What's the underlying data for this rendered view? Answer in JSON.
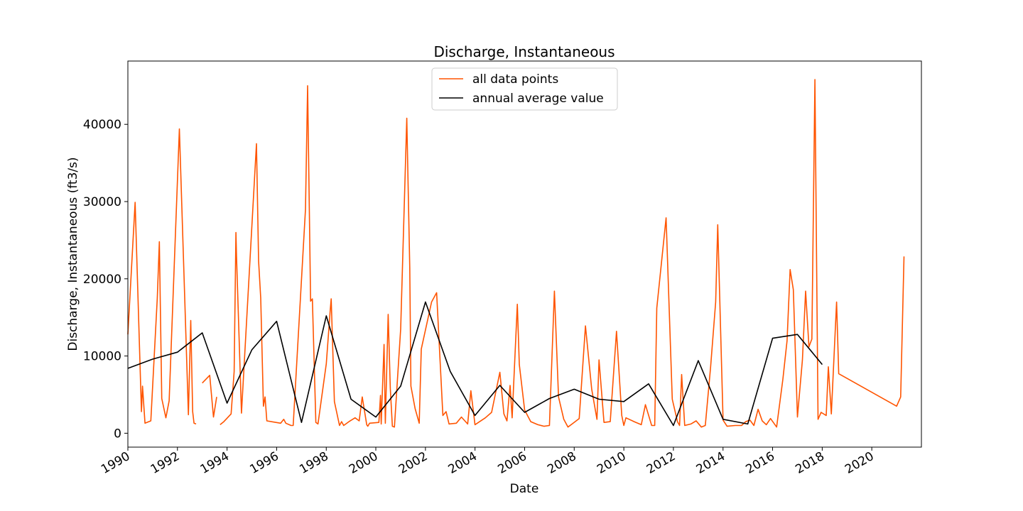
{
  "chart_data": {
    "type": "line",
    "title": "Discharge, Instantaneous",
    "xlabel": "Date",
    "ylabel": "Discharge, Instantaneous (ft3/s)",
    "xlim": [
      "1990-01-01",
      "2022-01-01"
    ],
    "ylim": [
      -1800,
      48200
    ],
    "x_tick_labels": [
      "1990",
      "1992",
      "1994",
      "1996",
      "1998",
      "2000",
      "2002",
      "2004",
      "2006",
      "2008",
      "2010",
      "2012",
      "2014",
      "2016",
      "2018",
      "2020"
    ],
    "y_tick_labels": [
      "0",
      "10000",
      "20000",
      "30000",
      "40000"
    ],
    "legend": {
      "placement": "upper-center"
    },
    "colors": {
      "all_data_points": "#ff5400",
      "annual_average_value": "#000000"
    },
    "series": [
      {
        "name": "all data points",
        "segments": [
          [
            [
              "1990-01-01",
              12800
            ],
            [
              "1990-04-18",
              29900
            ],
            [
              "1990-07-20",
              2800
            ],
            [
              "1990-08-05",
              6100
            ],
            [
              "1990-09-10",
              1300
            ],
            [
              "1990-12-05",
              1600
            ],
            [
              "1991-03-10",
              17500
            ],
            [
              "1991-04-10",
              24800
            ],
            [
              "1991-05-15",
              4500
            ],
            [
              "1991-07-15",
              2000
            ],
            [
              "1991-09-01",
              4200
            ],
            [
              "1992-01-30",
              39400
            ],
            [
              "1992-06-10",
              2400
            ],
            [
              "1992-07-15",
              14600
            ],
            [
              "1992-08-12",
              2800
            ],
            [
              "1992-09-01",
              1300
            ],
            [
              "1992-10-01",
              1200
            ]
          ],
          [
            [
              "1993-01-01",
              6500
            ],
            [
              "1993-04-20",
              7500
            ],
            [
              "1993-06-15",
              2100
            ],
            [
              "1993-08-01",
              4700
            ]
          ],
          [
            [
              "1993-09-20",
              1100
            ],
            [
              "1993-11-15",
              1500
            ],
            [
              "1994-03-01",
              2500
            ],
            [
              "1994-04-15",
              8000
            ],
            [
              "1994-05-12",
              26000
            ],
            [
              "1994-05-20",
              23000
            ],
            [
              "1994-08-01",
              2600
            ],
            [
              "1995-03-10",
              37500
            ],
            [
              "1995-04-10",
              22300
            ],
            [
              "1995-05-12",
              17500
            ],
            [
              "1995-06-20",
              3500
            ],
            [
              "1995-07-15",
              4700
            ],
            [
              "1995-08-10",
              1600
            ],
            [
              "1996-03-01",
              1300
            ],
            [
              "1996-04-15",
              1800
            ],
            [
              "1996-05-15",
              1300
            ],
            [
              "1996-08-01",
              1000
            ],
            [
              "1996-09-01",
              1000
            ],
            [
              "1997-03-01",
              29000
            ],
            [
              "1997-04-01",
              45000
            ],
            [
              "1997-05-15",
              17100
            ],
            [
              "1997-06-10",
              17400
            ],
            [
              "1997-08-01",
              1400
            ],
            [
              "1997-09-01",
              1200
            ],
            [
              "1998-01-01",
              9000
            ],
            [
              "1998-03-01",
              16000
            ],
            [
              "1998-03-15",
              17400
            ],
            [
              "1998-05-01",
              4100
            ],
            [
              "1998-07-15",
              1000
            ],
            [
              "1998-08-15",
              1500
            ],
            [
              "1998-09-15",
              1000
            ],
            [
              "1998-12-01",
              1500
            ],
            [
              "1999-03-01",
              2000
            ],
            [
              "1999-05-01",
              1600
            ],
            [
              "1999-06-15",
              4700
            ],
            [
              "1999-08-20",
              1100
            ],
            [
              "1999-09-05",
              900
            ],
            [
              "1999-10-01",
              1300
            ],
            [
              "2000-02-15",
              1400
            ],
            [
              "2000-03-10",
              4900
            ],
            [
              "2000-03-20",
              1200
            ],
            [
              "2000-05-01",
              11500
            ],
            [
              "2000-05-20",
              1300
            ],
            [
              "2000-07-01",
              15400
            ],
            [
              "2000-08-01",
              5800
            ],
            [
              "2000-09-01",
              900
            ],
            [
              "2000-10-01",
              800
            ],
            [
              "2001-01-01",
              13500
            ],
            [
              "2001-04-01",
              40800
            ],
            [
              "2001-05-15",
              21400
            ],
            [
              "2001-06-01",
              6100
            ],
            [
              "2001-08-01",
              3200
            ],
            [
              "2001-10-01",
              1300
            ],
            [
              "2001-11-01",
              10900
            ],
            [
              "2002-04-01",
              17000
            ],
            [
              "2002-06-15",
              18200
            ],
            [
              "2002-09-15",
              2300
            ],
            [
              "2002-11-01",
              2800
            ],
            [
              "2002-12-15",
              1200
            ],
            [
              "2003-04-01",
              1300
            ],
            [
              "2003-06-15",
              2100
            ],
            [
              "2003-09-15",
              1200
            ],
            [
              "2003-11-01",
              5500
            ],
            [
              "2004-01-01",
              1100
            ],
            [
              "2004-06-01",
              2000
            ],
            [
              "2004-09-01",
              2700
            ],
            [
              "2005-01-01",
              7900
            ],
            [
              "2005-03-01",
              2500
            ],
            [
              "2005-04-15",
              1600
            ],
            [
              "2005-06-01",
              6200
            ],
            [
              "2005-07-01",
              2000
            ],
            [
              "2005-09-15",
              16700
            ],
            [
              "2005-10-15",
              8900
            ],
            [
              "2006-01-01",
              3000
            ],
            [
              "2006-04-01",
              1500
            ],
            [
              "2006-07-15",
              1100
            ],
            [
              "2006-10-15",
              900
            ],
            [
              "2007-01-01",
              1000
            ],
            [
              "2007-03-15",
              18400
            ],
            [
              "2007-05-15",
              4700
            ],
            [
              "2007-08-01",
              1800
            ],
            [
              "2007-10-01",
              800
            ],
            [
              "2007-12-01",
              1200
            ],
            [
              "2008-03-15",
              1900
            ],
            [
              "2008-06-15",
              13900
            ],
            [
              "2008-09-15",
              5700
            ],
            [
              "2008-12-01",
              1800
            ],
            [
              "2009-01-01",
              9500
            ],
            [
              "2009-03-15",
              1400
            ],
            [
              "2009-06-15",
              1500
            ],
            [
              "2009-09-15",
              13200
            ],
            [
              "2009-12-01",
              2300
            ],
            [
              "2010-01-01",
              1000
            ],
            [
              "2010-02-01",
              2000
            ],
            [
              "2010-06-01",
              1500
            ],
            [
              "2010-09-15",
              1100
            ],
            [
              "2010-11-15",
              3700
            ],
            [
              "2011-02-15",
              1000
            ],
            [
              "2011-04-01",
              1000
            ],
            [
              "2011-05-01",
              16200
            ],
            [
              "2011-09-15",
              27900
            ],
            [
              "2011-12-15",
              4400
            ],
            [
              "2012-03-01",
              1500
            ],
            [
              "2012-04-01",
              1000
            ],
            [
              "2012-05-01",
              7600
            ],
            [
              "2012-06-15",
              1000
            ],
            [
              "2012-09-15",
              1200
            ],
            [
              "2012-12-01",
              1600
            ],
            [
              "2013-02-15",
              800
            ],
            [
              "2013-04-15",
              1000
            ],
            [
              "2013-07-01",
              8500
            ],
            [
              "2013-09-15",
              17000
            ],
            [
              "2013-10-15",
              27000
            ],
            [
              "2014-01-01",
              1700
            ],
            [
              "2014-03-01",
              900
            ],
            [
              "2014-07-01",
              1000
            ],
            [
              "2014-10-01",
              1000
            ],
            [
              "2014-12-01",
              1500
            ],
            [
              "2015-02-01",
              1700
            ],
            [
              "2015-04-01",
              1000
            ],
            [
              "2015-06-01",
              3100
            ],
            [
              "2015-08-01",
              1600
            ],
            [
              "2015-10-01",
              1100
            ],
            [
              "2015-12-01",
              1900
            ],
            [
              "2016-03-01",
              800
            ],
            [
              "2016-06-01",
              7000
            ],
            [
              "2016-08-01",
              12000
            ],
            [
              "2016-09-15",
              21200
            ],
            [
              "2016-11-01",
              18600
            ],
            [
              "2017-01-01",
              2100
            ],
            [
              "2017-03-15",
              9500
            ],
            [
              "2017-05-01",
              18400
            ],
            [
              "2017-06-20",
              11200
            ],
            [
              "2017-08-01",
              12200
            ],
            [
              "2017-09-15",
              45800
            ],
            [
              "2017-11-01",
              1800
            ],
            [
              "2017-12-15",
              2700
            ],
            [
              "2018-03-01",
              2300
            ],
            [
              "2018-04-01",
              8600
            ],
            [
              "2018-05-15",
              2500
            ],
            [
              "2018-08-01",
              17000
            ],
            [
              "2018-09-01",
              7700
            ],
            [
              "2021-01-01",
              3500
            ],
            [
              "2021-03-01",
              4700
            ],
            [
              "2021-04-20",
              22900
            ]
          ]
        ]
      },
      {
        "name": "annual average value",
        "points": [
          [
            "1990-01-01",
            8400
          ],
          [
            "1991-01-01",
            9600
          ],
          [
            "1992-01-01",
            10500
          ],
          [
            "1993-01-01",
            13000
          ],
          [
            "1994-01-01",
            3900
          ],
          [
            "1995-01-01",
            10800
          ],
          [
            "1996-01-01",
            14500
          ],
          [
            "1997-01-01",
            1400
          ],
          [
            "1998-01-01",
            15200
          ],
          [
            "1999-01-01",
            4400
          ],
          [
            "2000-01-01",
            2100
          ],
          [
            "2001-01-01",
            6100
          ],
          [
            "2002-01-01",
            17000
          ],
          [
            "2003-01-01",
            8000
          ],
          [
            "2004-01-01",
            2300
          ],
          [
            "2005-01-01",
            6200
          ],
          [
            "2006-01-01",
            2700
          ],
          [
            "2007-01-01",
            4500
          ],
          [
            "2008-01-01",
            5700
          ],
          [
            "2009-01-01",
            4400
          ],
          [
            "2010-01-01",
            4100
          ],
          [
            "2011-01-01",
            6400
          ],
          [
            "2012-01-01",
            1000
          ],
          [
            "2013-01-01",
            9400
          ],
          [
            "2014-01-01",
            1800
          ],
          [
            "2015-01-01",
            1200
          ],
          [
            "2016-01-01",
            12300
          ],
          [
            "2017-01-01",
            12800
          ],
          [
            "2018-01-01",
            8900
          ]
        ]
      }
    ]
  }
}
